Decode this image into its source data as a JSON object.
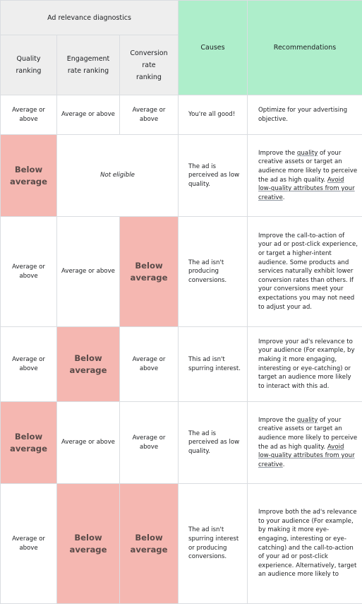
{
  "header": {
    "group_title": "Ad relevance diagnostics",
    "quality_ranking": "Quality ranking",
    "engagement_rate_ranking": "Engagement rate ranking",
    "conversion_rate_ranking": "Conversion rate ranking",
    "causes": "Causes",
    "recommendations": "Recommendations"
  },
  "values": {
    "average_or_above": "Average or above",
    "below_average": "Below average",
    "not_eligible": "Not eligible"
  },
  "rows": [
    {
      "cause": "You're all good!",
      "recommendation": "Optimize for your advertising objective."
    },
    {
      "cause": "The ad is perceived as low quality.",
      "rec_before_1": "Improve the ",
      "rec_link_1": "quality",
      "rec_after_1": " of your creative assets or target an audience more likely to perceive the ad as high quality. ",
      "rec_link_2": "Avoid low-quality attributes from your creative",
      "rec_end": "."
    },
    {
      "cause": "The ad isn't producing conversions.",
      "recommendation": "Improve the call-to-action of your ad or post-click experience, or target a higher-intent audience. Some products and services naturally exhibit lower conversion rates than others. If your conversions meet your expectations you may not need to adjust your ad."
    },
    {
      "cause": "This ad isn't spurring interest.",
      "recommendation": "Improve your ad's relevance to your audience (For example, by making it more engaging, interesting or eye-catching) or target an audience more likely to interact with this ad."
    },
    {
      "cause": "The ad is perceived as low quality.",
      "rec_before_1": "Improve the ",
      "rec_link_1": "quality",
      "rec_after_1": " of your creative assets or target an audience more likely to perceive the ad as high quality. ",
      "rec_link_2": "Avoid low-quality attributes from your creative",
      "rec_end": "."
    },
    {
      "cause": "The ad isn't spurring interest or producing conversions.",
      "recommendation": "Improve both the ad's relevance to your audience (For example, by making it more eye-engaging, interesting or eye-catching) and the call-to-action of your ad or post-click experience. Alternatively, target an audience more likely to"
    }
  ],
  "colors": {
    "header_gray": "#eeeeee",
    "header_green": "#aeeecb",
    "below_average_fill": "#f5b7b1",
    "border": "#dadde1"
  }
}
